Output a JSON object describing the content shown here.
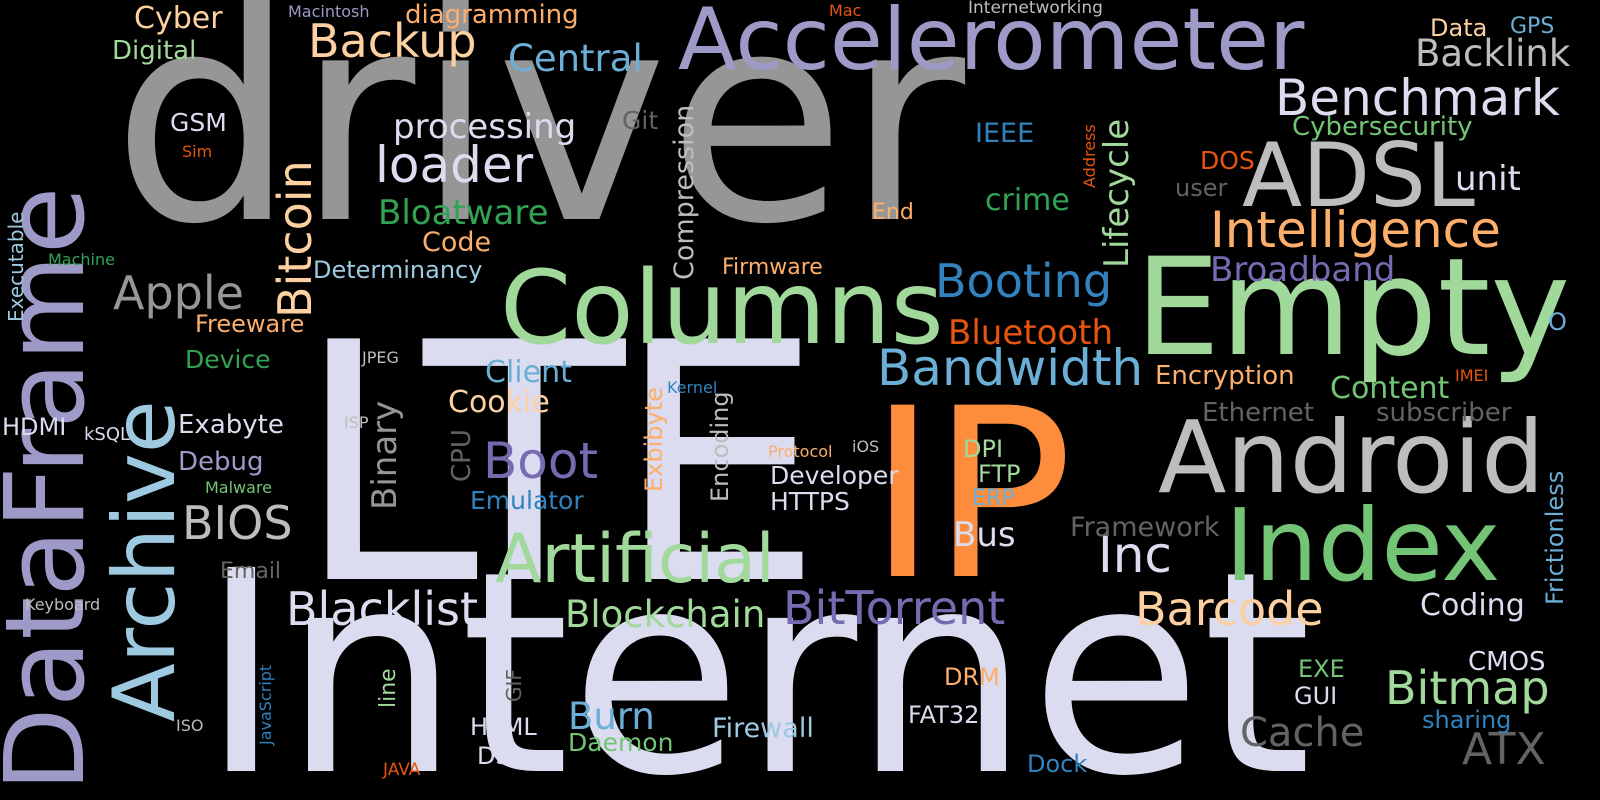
{
  "background": "#000000",
  "palette": {
    "lavender": "#dcdcf0",
    "purple": "#9e9ac8",
    "violet": "#756bb1",
    "gray": "#969696",
    "lightgray": "#bdbdbd",
    "darkgray": "#636363",
    "lightgreen": "#a1d99b",
    "green": "#31a354",
    "midgreen": "#74c476",
    "orange": "#fd8d3c",
    "peach": "#fdd0a2",
    "darkorange": "#e6550d",
    "apricot": "#fdae6b",
    "blue": "#3182bd",
    "skyblue": "#6baed6",
    "paleblue": "#9ecae1"
  },
  "words": [
    {
      "text": "driver",
      "color": "gray"
    },
    {
      "text": "Internet",
      "color": "lavender"
    },
    {
      "text": "LTE",
      "color": "lavender"
    },
    {
      "text": "IP",
      "color": "orange"
    },
    {
      "text": "DataFrame",
      "color": "purple"
    },
    {
      "text": "Accelerometer",
      "color": "purple"
    },
    {
      "text": "Empty",
      "color": "lightgreen"
    },
    {
      "text": "Columns",
      "color": "lightgreen"
    },
    {
      "text": "Android",
      "color": "lightgray"
    },
    {
      "text": "Index",
      "color": "midgreen"
    },
    {
      "text": "ADSL",
      "color": "lightgray"
    },
    {
      "text": "Archive",
      "color": "paleblue"
    },
    {
      "text": "Artificial",
      "color": "lightgreen"
    },
    {
      "text": "Intelligence",
      "color": "apricot"
    },
    {
      "text": "Benchmark",
      "color": "lavender"
    },
    {
      "text": "Backlink",
      "color": "lightgray"
    },
    {
      "text": "Backup",
      "color": "peach"
    },
    {
      "text": "Central",
      "color": "skyblue"
    },
    {
      "text": "Bitcoin",
      "color": "peach"
    },
    {
      "text": "loader",
      "color": "lavender"
    },
    {
      "text": "processing",
      "color": "lavender"
    },
    {
      "text": "Bloatware",
      "color": "green"
    },
    {
      "text": "Apple",
      "color": "gray"
    },
    {
      "text": "Booting",
      "color": "blue"
    },
    {
      "text": "Bandwidth",
      "color": "skyblue"
    },
    {
      "text": "Broadband",
      "color": "violet"
    },
    {
      "text": "Bluetooth",
      "color": "darkorange"
    },
    {
      "text": "BitTorrent",
      "color": "violet"
    },
    {
      "text": "Blacklist",
      "color": "lavender"
    },
    {
      "text": "Blockchain",
      "color": "lightgreen"
    },
    {
      "text": "Barcode",
      "color": "peach"
    },
    {
      "text": "Bitmap",
      "color": "lightgreen"
    },
    {
      "text": "Boot",
      "color": "violet"
    },
    {
      "text": "BIOS",
      "color": "lightgray"
    },
    {
      "text": "Inc",
      "color": "lavender"
    },
    {
      "text": "Cache",
      "color": "darkgray"
    },
    {
      "text": "ATX",
      "color": "darkgray"
    },
    {
      "text": "Burn",
      "color": "skyblue"
    },
    {
      "text": "Binary",
      "color": "gray"
    },
    {
      "text": "Lifecycle",
      "color": "lightgreen"
    },
    {
      "text": "Compression",
      "color": "lightgray"
    },
    {
      "text": "Cookie",
      "color": "peach"
    },
    {
      "text": "Client",
      "color": "skyblue"
    },
    {
      "text": "Bus",
      "color": "lavender"
    },
    {
      "text": "Content",
      "color": "midgreen"
    },
    {
      "text": "Encryption",
      "color": "apricot"
    },
    {
      "text": "Coding",
      "color": "lavender"
    },
    {
      "text": "Framework",
      "color": "darkgray"
    },
    {
      "text": "Ethernet",
      "color": "darkgray"
    },
    {
      "text": "subscriber",
      "color": "darkgray"
    },
    {
      "text": "Cybersecurity",
      "color": "midgreen"
    },
    {
      "text": "unit",
      "color": "lavender"
    },
    {
      "text": "Cyber",
      "color": "peach"
    },
    {
      "text": "Digital",
      "color": "lightgreen"
    },
    {
      "text": "diagramming",
      "color": "apricot"
    },
    {
      "text": "Code",
      "color": "apricot"
    },
    {
      "text": "Determinancy",
      "color": "paleblue"
    },
    {
      "text": "Freeware",
      "color": "apricot"
    },
    {
      "text": "Device",
      "color": "green"
    },
    {
      "text": "Exabyte",
      "color": "lavender"
    },
    {
      "text": "Debug",
      "color": "purple"
    },
    {
      "text": "Emulator",
      "color": "blue"
    },
    {
      "text": "Developer",
      "color": "lavender"
    },
    {
      "text": "HTTPS",
      "color": "lavender"
    },
    {
      "text": "Firewall",
      "color": "paleblue"
    },
    {
      "text": "Daemon",
      "color": "midgreen"
    },
    {
      "text": "Frictionless",
      "color": "skyblue"
    },
    {
      "text": "Exbibyte",
      "color": "apricot"
    },
    {
      "text": "Encoding",
      "color": "lightgray"
    },
    {
      "text": "CPU",
      "color": "darkgray"
    },
    {
      "text": "Executable",
      "color": "paleblue"
    },
    {
      "text": "crime",
      "color": "green"
    },
    {
      "text": "Firmware",
      "color": "apricot"
    },
    {
      "text": "End",
      "color": "apricot"
    },
    {
      "text": "Data",
      "color": "peach"
    },
    {
      "text": "GPS",
      "color": "skyblue"
    },
    {
      "text": "GSM",
      "color": "lavender"
    },
    {
      "text": "Sim",
      "color": "darkorange"
    },
    {
      "text": "Git",
      "color": "darkgray"
    },
    {
      "text": "IEEE",
      "color": "blue"
    },
    {
      "text": "DOS",
      "color": "darkorange"
    },
    {
      "text": "user",
      "color": "darkgray"
    },
    {
      "text": "Address",
      "color": "darkorange"
    },
    {
      "text": "Macintosh",
      "color": "purple"
    },
    {
      "text": "Mac",
      "color": "darkorange"
    },
    {
      "text": "Internetworking",
      "color": "lightgray"
    },
    {
      "text": "Machine",
      "color": "green"
    },
    {
      "text": "HDMI",
      "color": "lavender"
    },
    {
      "text": "kSQL",
      "color": "lavender"
    },
    {
      "text": "ISP",
      "color": "lightgray"
    },
    {
      "text": "JPEG",
      "color": "lightgray"
    },
    {
      "text": "Kernel",
      "color": "blue"
    },
    {
      "text": "Protocol",
      "color": "apricot"
    },
    {
      "text": "iOS",
      "color": "lightgray"
    },
    {
      "text": "DPI",
      "color": "lightgreen"
    },
    {
      "text": "FTP",
      "color": "lightgreen"
    },
    {
      "text": "ERP",
      "color": "skyblue"
    },
    {
      "text": "Malware",
      "color": "midgreen"
    },
    {
      "text": "Email",
      "color": "darkgray"
    },
    {
      "text": "Keyboard",
      "color": "lightgray"
    },
    {
      "text": "JavaScript",
      "color": "blue"
    },
    {
      "text": "ISO",
      "color": "lightgray"
    },
    {
      "text": "line",
      "color": "lightgreen"
    },
    {
      "text": "GIF",
      "color": "darkgray"
    },
    {
      "text": "HTML",
      "color": "lavender"
    },
    {
      "text": "DSL",
      "color": "lavender"
    },
    {
      "text": "JAVA",
      "color": "darkorange"
    },
    {
      "text": "DRM",
      "color": "apricot"
    },
    {
      "text": "FAT32",
      "color": "lavender"
    },
    {
      "text": "Dock",
      "color": "blue"
    },
    {
      "text": "EXE",
      "color": "midgreen"
    },
    {
      "text": "GUI",
      "color": "lavender"
    },
    {
      "text": "CMOS",
      "color": "lavender"
    },
    {
      "text": "sharing",
      "color": "blue"
    },
    {
      "text": "IMEI",
      "color": "darkorange"
    },
    {
      "text": "O",
      "color": "skyblue"
    }
  ]
}
